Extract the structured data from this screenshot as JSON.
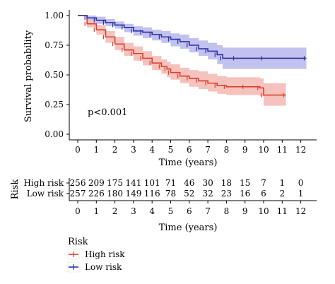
{
  "chart_data": {
    "type": "line",
    "subtype": "kaplan-meier",
    "title": "",
    "xlabel": "Time (years)",
    "ylabel": "Survival probability",
    "xlim": [
      0,
      12.8
    ],
    "ylim": [
      0,
      1.0
    ],
    "x_ticks": [
      "0",
      "1",
      "2",
      "3",
      "4",
      "5",
      "6",
      "7",
      "8",
      "9",
      "10",
      "11",
      "12"
    ],
    "y_ticks": [
      "0.00",
      "0.25",
      "0.50",
      "0.75",
      "1.00"
    ],
    "annotation": "p<0.001",
    "series": [
      {
        "name": "High risk",
        "color": "#d9402e",
        "band_color": "#ef8f86",
        "x": [
          0,
          0.5,
          1.0,
          1.5,
          2.0,
          2.5,
          3.0,
          3.5,
          4.0,
          4.5,
          4.8,
          5.0,
          5.5,
          6.0,
          6.5,
          7.0,
          7.5,
          8.0,
          9.0,
          9.8,
          10.0,
          11.2
        ],
        "y": [
          1.0,
          0.93,
          0.88,
          0.82,
          0.76,
          0.71,
          0.68,
          0.64,
          0.6,
          0.57,
          0.55,
          0.52,
          0.49,
          0.47,
          0.45,
          0.43,
          0.41,
          0.4,
          0.4,
          0.39,
          0.33,
          0.33
        ],
        "lower": [
          1.0,
          0.9,
          0.84,
          0.77,
          0.71,
          0.66,
          0.62,
          0.58,
          0.54,
          0.51,
          0.48,
          0.46,
          0.43,
          0.4,
          0.38,
          0.36,
          0.34,
          0.33,
          0.33,
          0.32,
          0.24,
          0.24
        ],
        "upper": [
          1.0,
          0.96,
          0.92,
          0.87,
          0.82,
          0.77,
          0.74,
          0.7,
          0.66,
          0.63,
          0.61,
          0.59,
          0.56,
          0.54,
          0.53,
          0.51,
          0.49,
          0.48,
          0.48,
          0.47,
          0.43,
          0.43
        ]
      },
      {
        "name": "Low risk",
        "color": "#2e2ea6",
        "band_color": "#8f8fe0",
        "x": [
          0,
          0.5,
          1.0,
          1.5,
          2.0,
          2.5,
          3.0,
          3.5,
          4.0,
          4.5,
          5.0,
          5.5,
          6.0,
          6.5,
          7.0,
          7.5,
          7.8,
          8.5,
          10.0,
          12.3
        ],
        "y": [
          1.0,
          0.98,
          0.96,
          0.94,
          0.92,
          0.9,
          0.87,
          0.86,
          0.84,
          0.82,
          0.8,
          0.78,
          0.75,
          0.72,
          0.7,
          0.67,
          0.64,
          0.64,
          0.64,
          0.64
        ],
        "lower": [
          1.0,
          0.96,
          0.93,
          0.91,
          0.89,
          0.86,
          0.83,
          0.81,
          0.79,
          0.77,
          0.74,
          0.72,
          0.69,
          0.66,
          0.63,
          0.59,
          0.55,
          0.55,
          0.55,
          0.55
        ],
        "upper": [
          1.0,
          1.0,
          0.99,
          0.97,
          0.95,
          0.93,
          0.91,
          0.9,
          0.88,
          0.87,
          0.85,
          0.84,
          0.81,
          0.79,
          0.77,
          0.75,
          0.73,
          0.73,
          0.73,
          0.73
        ]
      }
    ],
    "risk_table": {
      "title": "Risk",
      "rows": [
        {
          "label": "High risk",
          "counts": [
            "256",
            "209",
            "175",
            "141",
            "101",
            "71",
            "46",
            "30",
            "18",
            "15",
            "7",
            "1",
            "0"
          ]
        },
        {
          "label": "Low risk",
          "counts": [
            "257",
            "226",
            "180",
            "149",
            "116",
            "78",
            "52",
            "32",
            "23",
            "16",
            "6",
            "2",
            "1"
          ]
        }
      ],
      "xlabel": "Time (years)"
    },
    "legend": {
      "title": "Risk",
      "placement": "bottom-left",
      "items": [
        {
          "label": "High risk",
          "color": "#d9402e"
        },
        {
          "label": "Low risk",
          "color": "#2e2ea6"
        }
      ]
    }
  }
}
